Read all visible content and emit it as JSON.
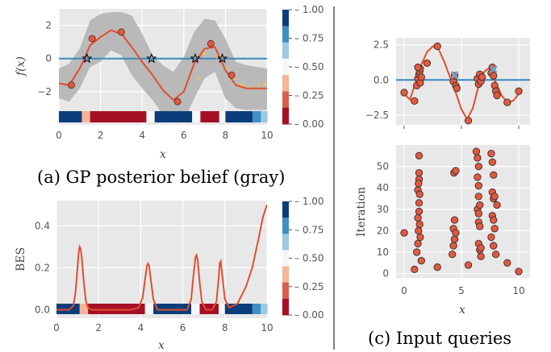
{
  "colors": {
    "panel_bg": "#e8e8e8",
    "grid": "#ffffff",
    "red_line": "#e04e2f",
    "blue_line": "#3a88c2",
    "band_gray": "#b9b9b9",
    "point_fill": "#e15a40",
    "point_edge": "#5a1a12",
    "star": "#000000",
    "dots_yellow": "#f2c24a",
    "cross": "#6fa0c8",
    "cmap": [
      "#a50f26",
      "#d6604d",
      "#f5b596",
      "#f7f7f7",
      "#9cc9e3",
      "#3f8fc4",
      "#0b3d7a"
    ]
  },
  "chart_data": [
    {
      "id": "a",
      "type": "line",
      "caption": "(a) GP posterior belief (gray)",
      "xlabel": "x",
      "ylabel": "f(x)",
      "xlim": [
        0,
        10
      ],
      "ylim": [
        -4,
        3
      ],
      "xticks": [
        "0",
        "2",
        "4",
        "6",
        "8",
        "10"
      ],
      "yticks": [
        "−2",
        "0",
        "2"
      ],
      "grid": true,
      "mean_curve": {
        "x": [
          0,
          0.5,
          1.0,
          1.5,
          2.0,
          2.5,
          3.0,
          3.5,
          4.0,
          4.5,
          5.0,
          5.5,
          6.0,
          6.5,
          7.0,
          7.5,
          8.0,
          8.5,
          9.0,
          9.5,
          10.0
        ],
        "y": [
          -1.5,
          -1.6,
          -0.6,
          0.8,
          1.3,
          1.7,
          1.5,
          0.7,
          -0.2,
          -1.0,
          -1.9,
          -2.5,
          -2.0,
          -0.3,
          0.6,
          0.7,
          -0.7,
          -1.6,
          -1.8,
          -1.8,
          -1.8
        ]
      },
      "band_upper": [
        -0.6,
        -0.3,
        0.6,
        2.3,
        2.7,
        2.8,
        2.8,
        2.6,
        1.5,
        0.2,
        -0.4,
        -0.8,
        0.1,
        1.6,
        2.4,
        2.3,
        1.2,
        -0.2,
        -0.4,
        -0.5,
        -0.6
      ],
      "band_lower": [
        -2.4,
        -2.6,
        -1.8,
        -0.5,
        -0.2,
        0.5,
        0.2,
        -1.0,
        -1.8,
        -2.5,
        -3.4,
        -3.8,
        -3.8,
        -2.4,
        -1.2,
        -0.8,
        -2.4,
        -3.0,
        -3.1,
        -3.1,
        -3.1
      ],
      "threshold_y": 0,
      "observations": {
        "x": [
          0.6,
          1.6,
          3.0,
          5.7,
          7.3,
          8.3
        ],
        "y": [
          -1.6,
          1.2,
          1.6,
          -2.6,
          0.9,
          -1.0
        ]
      },
      "stars_x": [
        1.35,
        4.45,
        6.55,
        7.85
      ],
      "true_function_dots": {
        "x": [
          6.7,
          7.0,
          7.3,
          7.6,
          8.0,
          8.4,
          8.8,
          9.2,
          9.6,
          9.9
        ],
        "y": [
          -1.2,
          0.3,
          0.8,
          0.1,
          -0.6,
          -1.2,
          -1.6,
          -1.7,
          -1.6,
          -1.5
        ]
      },
      "class_strip": {
        "segments": [
          [
            0,
            1.1,
            0.95
          ],
          [
            1.1,
            1.5,
            0.4
          ],
          [
            1.5,
            4.2,
            0.0
          ],
          [
            4.2,
            4.6,
            0.5
          ],
          [
            4.6,
            6.4,
            0.95
          ],
          [
            6.4,
            6.8,
            0.5
          ],
          [
            6.8,
            7.7,
            0.0
          ],
          [
            7.7,
            8.0,
            0.5
          ],
          [
            8.0,
            9.3,
            0.95
          ],
          [
            9.3,
            9.7,
            0.75
          ],
          [
            9.7,
            10,
            0.6
          ]
        ]
      },
      "colorbar": {
        "ticks": [
          "1.00",
          "0.75",
          "0.50",
          "0.25",
          "0.00"
        ]
      }
    },
    {
      "id": "b",
      "type": "line",
      "xlabel": "x",
      "ylabel": "BES",
      "xlim": [
        0,
        10
      ],
      "ylim": [
        -0.04,
        0.52
      ],
      "xticks": [
        "0",
        "2",
        "4",
        "6",
        "8",
        "10"
      ],
      "yticks": [
        "0.0",
        "0.2",
        "0.4"
      ],
      "grid": true,
      "curve": {
        "x": [
          0,
          0.6,
          0.8,
          0.9,
          1.0,
          1.05,
          1.1,
          1.15,
          1.2,
          1.3,
          1.4,
          1.5,
          1.7,
          2.0,
          3.5,
          3.9,
          4.1,
          4.2,
          4.3,
          4.35,
          4.4,
          4.5,
          4.6,
          4.8,
          5.5,
          6.2,
          6.4,
          6.5,
          6.6,
          6.65,
          6.7,
          6.8,
          6.9,
          7.1,
          7.4,
          7.6,
          7.7,
          7.75,
          7.8,
          7.9,
          8.0,
          8.2,
          8.6,
          9.0,
          9.3,
          9.6,
          9.8,
          10.0
        ],
        "y": [
          0.0,
          0.0,
          0.02,
          0.08,
          0.2,
          0.27,
          0.3,
          0.29,
          0.25,
          0.13,
          0.04,
          0.01,
          0.0,
          0.0,
          0.0,
          0.01,
          0.06,
          0.14,
          0.21,
          0.22,
          0.21,
          0.13,
          0.05,
          0.0,
          0.0,
          0.0,
          0.05,
          0.16,
          0.25,
          0.26,
          0.24,
          0.13,
          0.04,
          0.0,
          0.0,
          0.04,
          0.15,
          0.22,
          0.23,
          0.14,
          0.05,
          0.01,
          0.03,
          0.11,
          0.2,
          0.34,
          0.44,
          0.5
        ]
      },
      "class_strip": {
        "segments": [
          [
            0,
            1.1,
            0.95
          ],
          [
            1.1,
            1.5,
            0.4
          ],
          [
            1.5,
            4.2,
            0.0
          ],
          [
            4.2,
            4.6,
            0.5
          ],
          [
            4.6,
            6.4,
            0.95
          ],
          [
            6.4,
            6.8,
            0.5
          ],
          [
            6.8,
            7.7,
            0.0
          ],
          [
            7.7,
            8.0,
            0.5
          ],
          [
            8.0,
            9.3,
            0.95
          ],
          [
            9.3,
            9.7,
            0.75
          ],
          [
            9.7,
            10,
            0.6
          ]
        ]
      },
      "colorbar": {
        "ticks": [
          "1.00",
          "0.75",
          "0.50",
          "0.25",
          "0.00"
        ]
      }
    },
    {
      "id": "c-top",
      "type": "scatter",
      "xlim": [
        0,
        10
      ],
      "ylim": [
        -3.2,
        3.0
      ],
      "yticks": [
        "2.5",
        "0.0",
        "−2.5"
      ],
      "grid": true,
      "curve": {
        "x": [
          0,
          0.5,
          1.0,
          1.5,
          2.0,
          2.5,
          3.0,
          3.5,
          4.0,
          4.5,
          5.0,
          5.5,
          6.0,
          6.5,
          7.0,
          7.5,
          8.0,
          8.5,
          9.0,
          9.5,
          10.0
        ],
        "y": [
          -1.0,
          -1.4,
          -0.2,
          1.1,
          2.0,
          2.4,
          2.2,
          1.3,
          0.2,
          -0.9,
          -2.1,
          -2.8,
          -2.0,
          -0.4,
          0.6,
          0.9,
          -0.2,
          -1.1,
          -1.6,
          -1.5,
          -1.0
        ]
      },
      "threshold_y": 0,
      "points": {
        "x": [
          0.0,
          0.9,
          1.1,
          1.2,
          1.3,
          1.35,
          1.4,
          1.4,
          1.5,
          1.2,
          2.0,
          2.9,
          4.3,
          4.4,
          4.5,
          4.6,
          5.6,
          6.4,
          6.5,
          6.6,
          6.7,
          6.8,
          7.6,
          7.7,
          7.8,
          7.9,
          8.0,
          8.1,
          9.0,
          10.0
        ],
        "y": [
          -0.9,
          -1.5,
          -0.4,
          0.1,
          0.4,
          0.6,
          0.8,
          -0.2,
          0.2,
          0.9,
          1.2,
          2.4,
          -0.1,
          0.3,
          -0.4,
          -0.6,
          -2.9,
          0.1,
          -0.3,
          0.4,
          -0.1,
          0.2,
          0.5,
          0.9,
          0.3,
          -0.4,
          -0.8,
          -1.1,
          -1.6,
          -0.8
        ]
      },
      "crosses": {
        "x": [
          4.4,
          7.8
        ],
        "y": [
          0.35,
          0.75
        ]
      }
    },
    {
      "id": "c-bottom",
      "type": "scatter",
      "caption": "(c) Input queries",
      "xlabel": "x",
      "ylabel": "Iteration",
      "xlim": [
        0,
        10
      ],
      "ylim": [
        -2,
        60
      ],
      "xticks": [
        "0",
        "5",
        "10"
      ],
      "yticks": [
        "50",
        "40",
        "30",
        "20",
        "10",
        "0"
      ],
      "grid": true,
      "points": {
        "x": [
          0.0,
          0.9,
          1.1,
          1.2,
          1.3,
          1.3,
          1.2,
          1.25,
          1.3,
          1.3,
          1.35,
          1.4,
          1.3,
          1.35,
          1.2,
          1.25,
          1.5,
          2.9,
          4.2,
          4.3,
          4.4,
          4.3,
          4.4,
          4.5,
          4.35,
          4.5,
          5.6,
          6.3,
          6.4,
          6.5,
          6.4,
          6.5,
          6.5,
          6.4,
          6.6,
          6.5,
          6.5,
          6.6,
          6.5,
          6.6,
          6.7,
          6.7,
          7.6,
          7.7,
          7.8,
          7.7,
          7.8,
          7.7,
          7.8,
          7.9,
          7.6,
          7.8,
          8.0,
          7.9,
          8.1,
          9.0,
          10.0
        ],
        "y": [
          19,
          2,
          10,
          26,
          55,
          44,
          39,
          42,
          33,
          29,
          23,
          17,
          47,
          37,
          14,
          20,
          6,
          3,
          9,
          13,
          16,
          21,
          25,
          19,
          47,
          48,
          4,
          57,
          54,
          50,
          45,
          41,
          36,
          30,
          32,
          28,
          24,
          22,
          14,
          11,
          8,
          12,
          56,
          52,
          46,
          38,
          35,
          27,
          25,
          21,
          17,
          13,
          9,
          36,
          32,
          5,
          1
        ]
      }
    }
  ]
}
